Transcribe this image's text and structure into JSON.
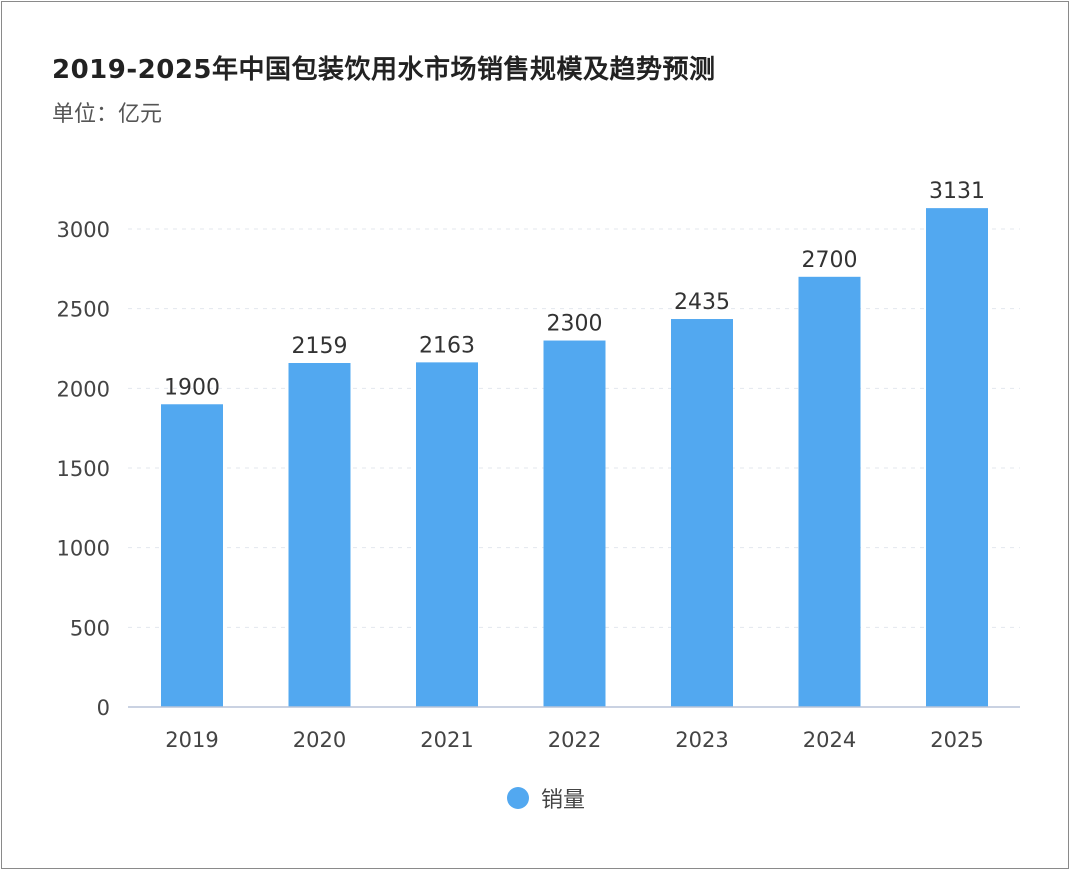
{
  "chart_data": {
    "type": "bar",
    "title": "2019-2025年中国包装饮用水市场销售规模及趋势预测",
    "subtitle": "单位：亿元",
    "categories": [
      "2019",
      "2020",
      "2021",
      "2022",
      "2023",
      "2024",
      "2025"
    ],
    "series": [
      {
        "name": "销量",
        "values": [
          1900,
          2159,
          2163,
          2300,
          2435,
          2700,
          3131
        ],
        "color": "#52a8f0"
      }
    ],
    "y_ticks": [
      "0",
      "500",
      "1000",
      "1500",
      "2000",
      "2500",
      "3000"
    ],
    "ylim": [
      0,
      3000
    ],
    "grid": "horizontal dashed",
    "legend_position": "bottom-center",
    "data_labels": true
  }
}
